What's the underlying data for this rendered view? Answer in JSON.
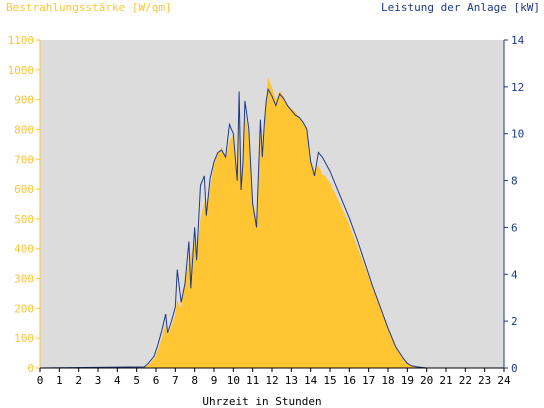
{
  "chart_data": {
    "type": "area",
    "title_left": "Bestrahlungsstärke [W/qm]",
    "title_right": "Leistung der Anlage [kW]",
    "xlabel": "Uhrzeit in Stunden",
    "xlim": [
      0,
      24
    ],
    "ylim_left": [
      0,
      1100
    ],
    "ylim_right": [
      0,
      14
    ],
    "x_ticks": [
      "0",
      "1",
      "2",
      "3",
      "4",
      "5",
      "6",
      "7",
      "8",
      "9",
      "10",
      "11",
      "12",
      "13",
      "14",
      "15",
      "16",
      "17",
      "18",
      "19",
      "20",
      "21",
      "22",
      "23",
      "24"
    ],
    "y_ticks_left": [
      "0",
      "100",
      "200",
      "300",
      "400",
      "500",
      "600",
      "700",
      "800",
      "900",
      "1000",
      "1100"
    ],
    "y_ticks_right": [
      "0",
      "2",
      "4",
      "6",
      "8",
      "10",
      "12",
      "14"
    ],
    "grid": false,
    "colors": {
      "plot_bg": "#dcdcdc",
      "irradiance": "#ffc533",
      "power": "#1e3a8a",
      "axis": "#000000"
    },
    "series": [
      {
        "name": "Bestrahlungsstärke",
        "axis": "left",
        "x": [
          0,
          5.4,
          5.6,
          5.9,
          6.1,
          6.3,
          6.5,
          6.6,
          6.8,
          7.0,
          7.1,
          7.3,
          7.5,
          7.7,
          7.8,
          8.0,
          8.1,
          8.3,
          8.5,
          8.6,
          8.8,
          9.0,
          9.2,
          9.4,
          9.6,
          9.8,
          10.0,
          10.2,
          10.3,
          10.4,
          10.5,
          10.6,
          10.8,
          11.0,
          11.2,
          11.4,
          11.5,
          11.6,
          11.7,
          11.8,
          12.0,
          12.2,
          12.4,
          12.6,
          12.8,
          13.0,
          13.2,
          13.4,
          13.6,
          13.8,
          14.0,
          14.2,
          14.4,
          14.6,
          14.8,
          15.0,
          15.3,
          15.6,
          16.0,
          16.4,
          16.8,
          17.2,
          17.6,
          18.0,
          18.4,
          18.8,
          19.0,
          19.2,
          19.5,
          19.8,
          20.0,
          20.2,
          20.4,
          24
        ],
        "values": [
          0,
          2,
          10,
          30,
          60,
          100,
          150,
          110,
          140,
          180,
          230,
          200,
          300,
          350,
          380,
          420,
          380,
          500,
          560,
          520,
          600,
          680,
          720,
          740,
          700,
          760,
          780,
          640,
          900,
          620,
          700,
          850,
          780,
          560,
          500,
          820,
          720,
          800,
          900,
          975,
          940,
          900,
          930,
          910,
          880,
          870,
          860,
          840,
          820,
          800,
          700,
          660,
          680,
          650,
          640,
          620,
          580,
          540,
          480,
          410,
          340,
          270,
          200,
          130,
          70,
          30,
          15,
          8,
          5,
          3,
          2,
          1,
          0,
          0
        ]
      },
      {
        "name": "Leistung",
        "axis": "right",
        "x": [
          0,
          5.4,
          5.6,
          5.9,
          6.1,
          6.3,
          6.5,
          6.6,
          6.8,
          7.0,
          7.1,
          7.3,
          7.5,
          7.7,
          7.8,
          8.0,
          8.1,
          8.3,
          8.5,
          8.6,
          8.8,
          9.0,
          9.2,
          9.4,
          9.6,
          9.8,
          10.0,
          10.2,
          10.3,
          10.4,
          10.5,
          10.6,
          10.8,
          11.0,
          11.2,
          11.4,
          11.5,
          11.6,
          11.7,
          11.8,
          12.0,
          12.2,
          12.4,
          12.6,
          12.8,
          13.0,
          13.2,
          13.4,
          13.6,
          13.8,
          14.0,
          14.2,
          14.4,
          14.6,
          14.8,
          15.0,
          15.3,
          15.6,
          16.0,
          16.4,
          16.8,
          17.2,
          17.6,
          18.0,
          18.4,
          18.8,
          19.0,
          19.2,
          19.5,
          19.8,
          20.0,
          20.2,
          20.4,
          24
        ],
        "values": [
          0,
          0.05,
          0.2,
          0.5,
          1.0,
          1.6,
          2.3,
          1.5,
          2.0,
          2.6,
          4.2,
          2.8,
          3.6,
          5.4,
          3.4,
          6.0,
          4.6,
          7.8,
          8.2,
          6.5,
          8.1,
          8.8,
          9.2,
          9.3,
          9.0,
          10.4,
          10.0,
          8.0,
          11.8,
          7.6,
          8.8,
          11.4,
          10.2,
          7.0,
          6.0,
          10.6,
          9.0,
          10.4,
          11.4,
          11.9,
          11.6,
          11.2,
          11.7,
          11.5,
          11.2,
          11.0,
          10.8,
          10.7,
          10.5,
          10.2,
          8.8,
          8.2,
          9.2,
          9.0,
          8.7,
          8.4,
          7.8,
          7.2,
          6.4,
          5.5,
          4.5,
          3.5,
          2.6,
          1.7,
          0.9,
          0.4,
          0.2,
          0.1,
          0.05,
          0.02,
          0,
          0,
          0,
          0
        ]
      }
    ]
  }
}
